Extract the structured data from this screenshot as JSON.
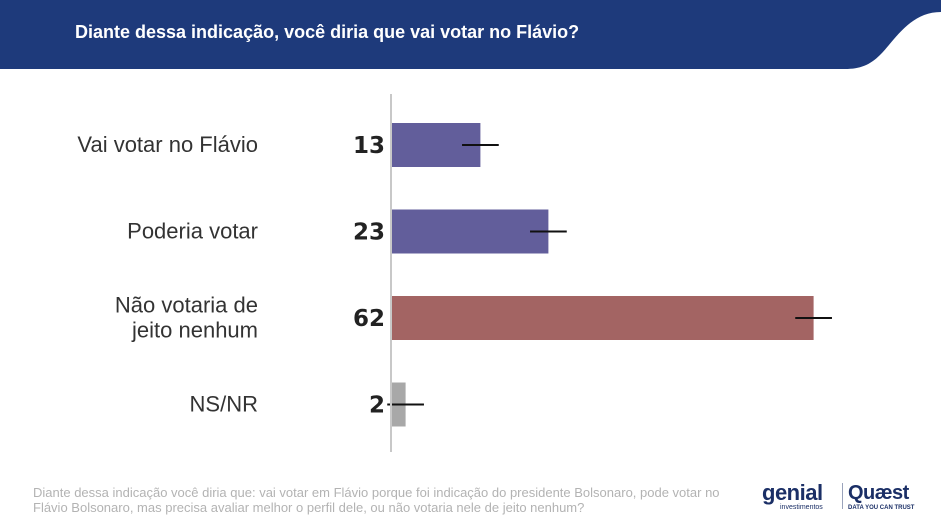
{
  "header": {
    "title": "Diante dessa indicação, você diria que vai votar no Flávio?",
    "bg_color": "#1e3a7b"
  },
  "chart_data": {
    "type": "bar",
    "orientation": "horizontal",
    "categories": [
      [
        "Vai votar no Flávio"
      ],
      [
        "Poderia votar"
      ],
      [
        "Não votaria de",
        "jeito nenhum"
      ],
      [
        "NS/NR"
      ]
    ],
    "values": [
      13,
      23,
      62,
      2
    ],
    "error_margin": 2,
    "colors": [
      "#625e9b",
      "#625e9b",
      "#a36463",
      "#a8a8a8"
    ],
    "xlim": [
      0,
      70
    ],
    "grid": false,
    "legend": "none"
  },
  "footnote": "Diante dessa indicação você diria que: vai votar em Flávio porque foi indicação do presidente Bolsonaro, pode votar no Flávio Bolsonaro, mas precisa avaliar melhor o perfil dele, ou não votaria nele de jeito nenhum?",
  "logos": {
    "genial": "genial",
    "genial_sub": "investimentos",
    "quaest": "Quæst",
    "quaest_sub": "DATA YOU CAN TRUST"
  }
}
